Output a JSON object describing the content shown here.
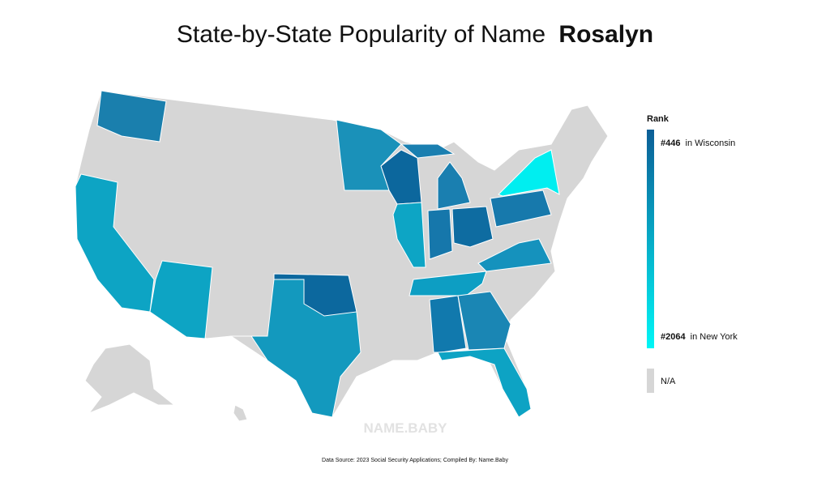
{
  "title": {
    "text": "State-by-State Popularity of Name",
    "name": "Rosalyn"
  },
  "legend": {
    "title": "Rank",
    "high": {
      "rank": "#446",
      "state": "in Wisconsin",
      "color": "#0c5e96"
    },
    "low": {
      "rank": "#2064",
      "state": "in New York",
      "color": "#00f6f6"
    },
    "na": {
      "label": "N/A",
      "color": "#d6d6d6"
    }
  },
  "regions": [
    {
      "color": "#1a7fad"
    },
    {
      "color": "#0da4c4"
    },
    {
      "color": "#0da4c4"
    },
    {
      "color": "#1399be"
    },
    {
      "color": "#0c689e"
    },
    {
      "color": "#1a91b9"
    },
    {
      "color": "#0c679d"
    },
    {
      "color": "#1a7fb0"
    },
    {
      "color": "#1a7fb0"
    },
    {
      "color": "#0da5c5"
    },
    {
      "color": "#1677ab"
    },
    {
      "color": "#0e6ca1"
    },
    {
      "color": "#1779ac"
    },
    {
      "color": "#1592bd"
    },
    {
      "color": "#0d9ec3"
    },
    {
      "color": "#1179ad"
    },
    {
      "color": "#1a86b4"
    },
    {
      "color": "#0da3c4"
    },
    {
      "color": "#00eef0"
    }
  ],
  "watermark": "NAME.BABY",
  "source": "Data Source: 2023 Social Security Applications; Compiled By: Name.Baby"
}
